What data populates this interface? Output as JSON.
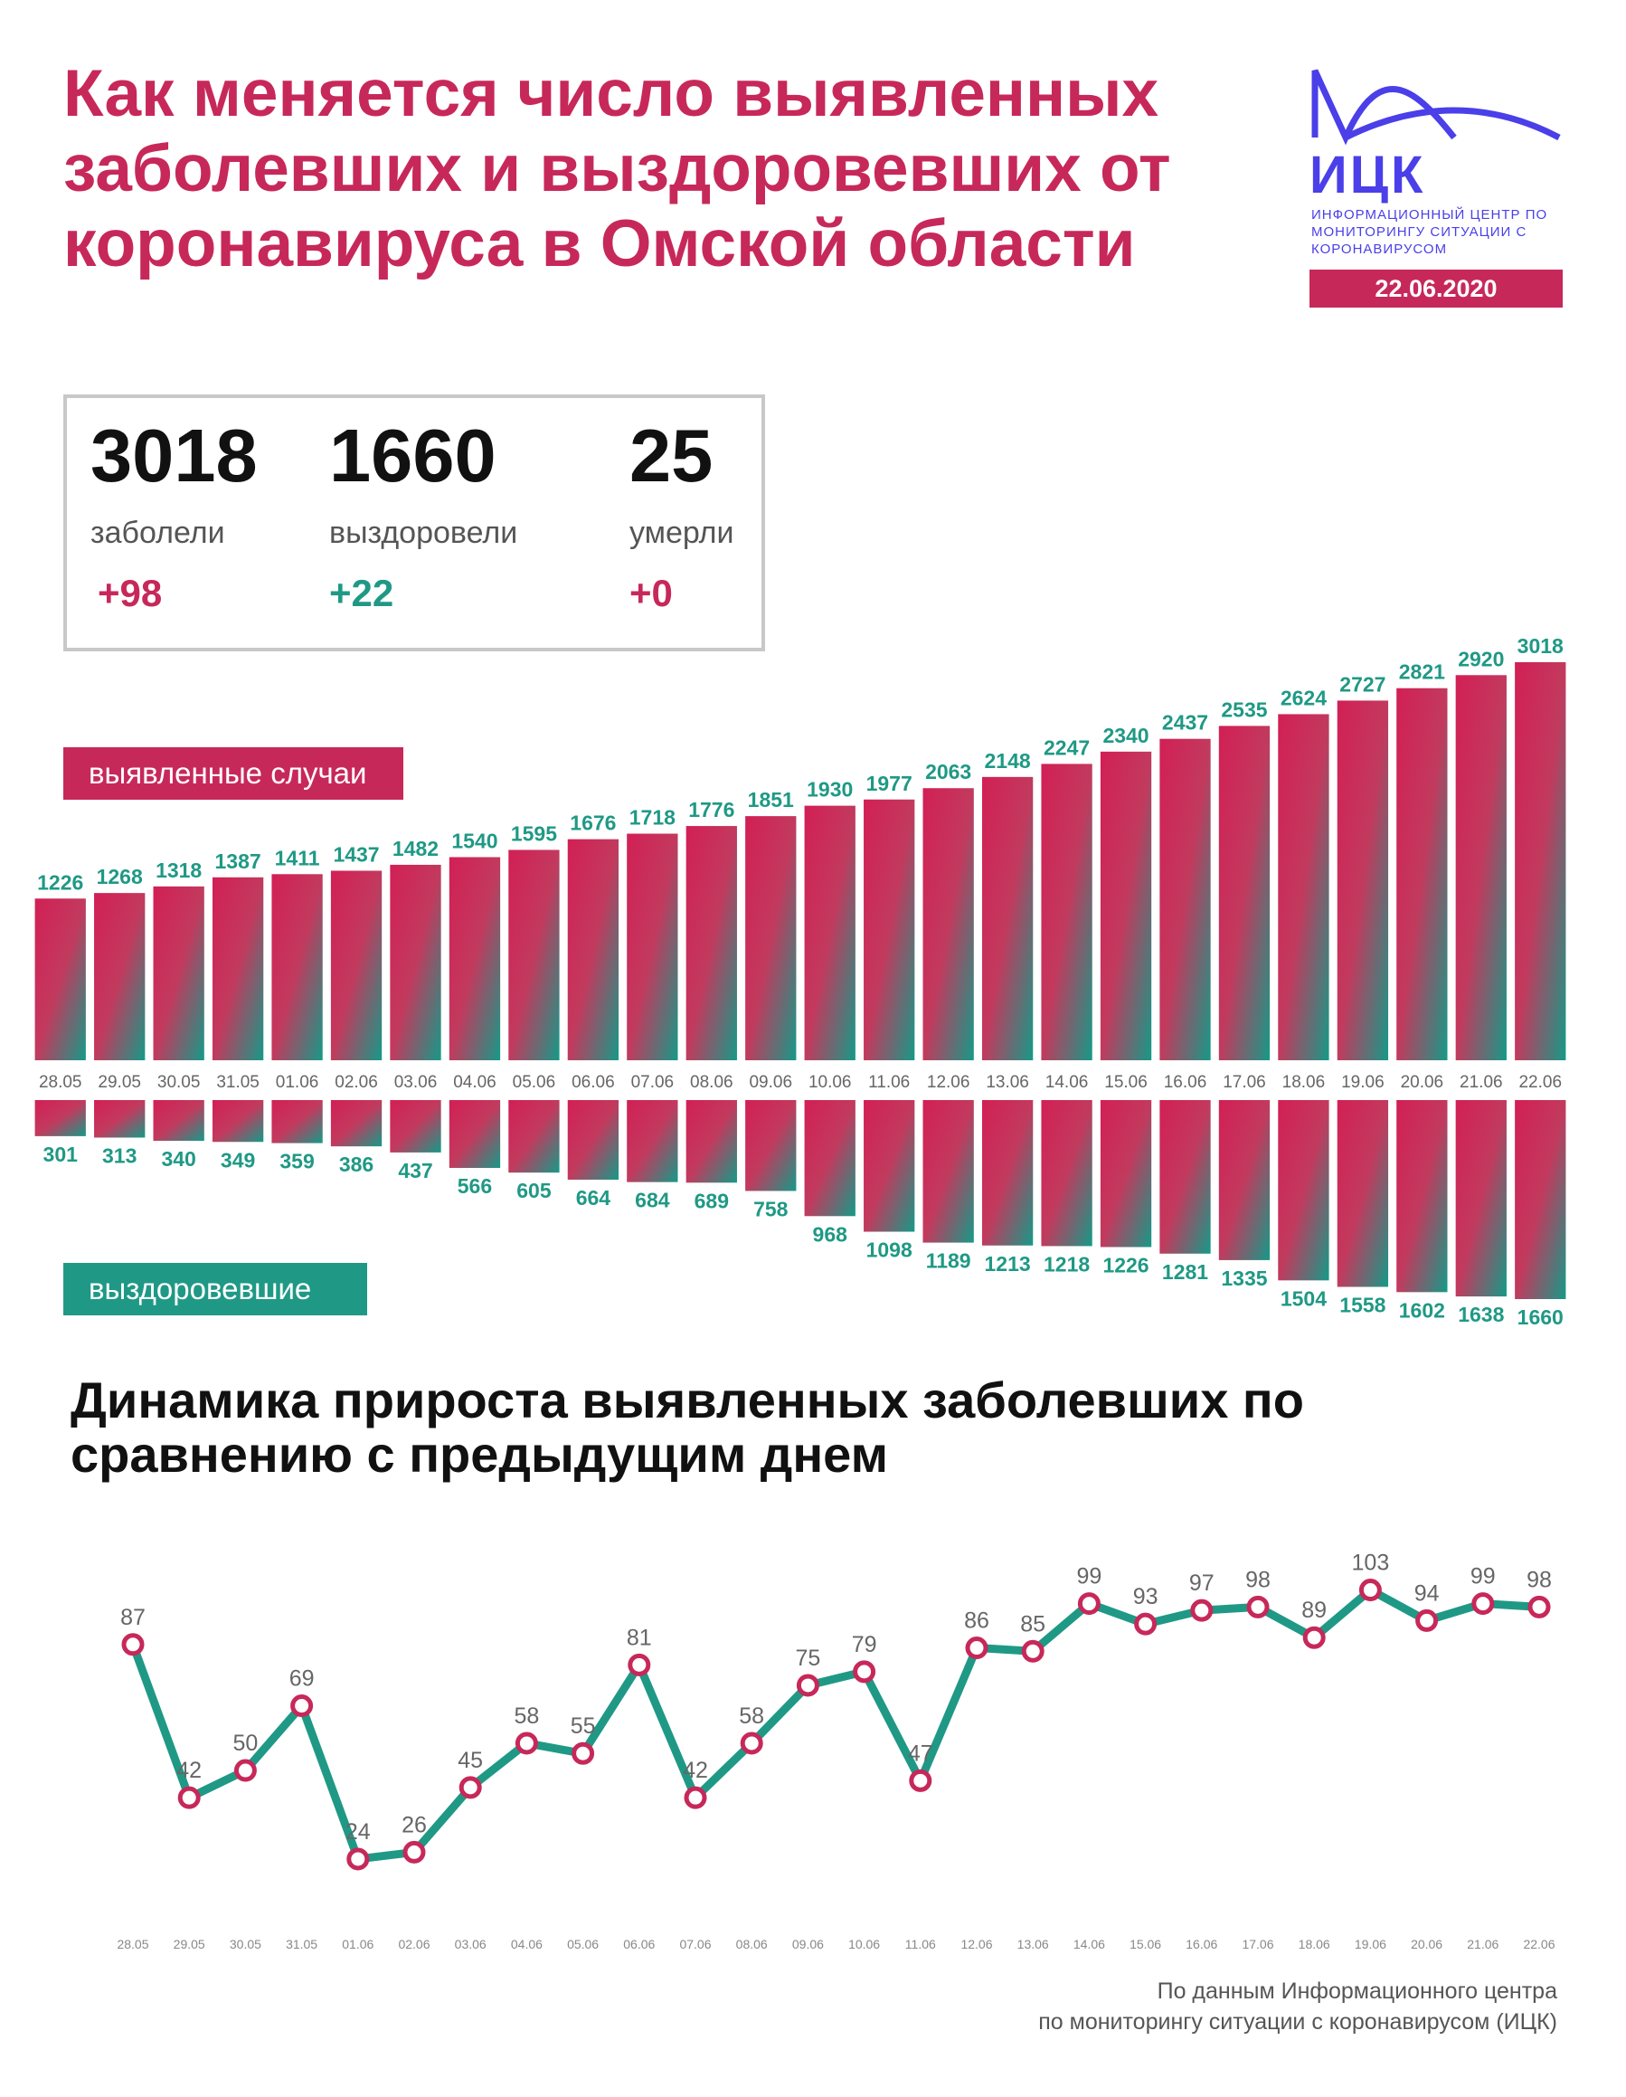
{
  "header": {
    "title": "Как меняется число выявленных заболевших и выздоровевших от коронавируса в Омской области"
  },
  "logo": {
    "name": "ИЦК",
    "description": "ИНФОРМАЦИОННЫЙ ЦЕНТР ПО МОНИТОРИНГУ СИТУАЦИИ С КОРОНАВИРУСОМ",
    "date": "22.06.2020"
  },
  "stats": [
    {
      "value": "3018",
      "label": "заболели",
      "delta": "+98",
      "delta_color": "#c7285a"
    },
    {
      "value": "1660",
      "label": "выздоровели",
      "delta": "+22",
      "delta_color": "#1f9985"
    },
    {
      "value": "25",
      "label": "умерли",
      "delta": "+0",
      "delta_color": "#c7285a"
    }
  ],
  "colors": {
    "accent_red": "#c7285a",
    "accent_teal": "#1f9985",
    "logo_blue": "#4a3fe8"
  },
  "chart_data": [
    {
      "type": "bar",
      "title": "",
      "categories": [
        "28.05",
        "29.05",
        "30.05",
        "31.05",
        "01.06",
        "02.06",
        "03.06",
        "04.06",
        "05.06",
        "06.06",
        "07.06",
        "08.06",
        "09.06",
        "10.06",
        "11.06",
        "12.06",
        "13.06",
        "14.06",
        "15.06",
        "16.06",
        "17.06",
        "18.06",
        "19.06",
        "20.06",
        "21.06",
        "22.06"
      ],
      "series": [
        {
          "name": "выявленные случаи",
          "direction": "up",
          "values": [
            1226,
            1268,
            1318,
            1387,
            1411,
            1437,
            1482,
            1540,
            1595,
            1676,
            1718,
            1776,
            1851,
            1930,
            1977,
            2063,
            2148,
            2247,
            2340,
            2437,
            2535,
            2624,
            2727,
            2821,
            2920,
            3018
          ]
        },
        {
          "name": "выздоровевшие",
          "direction": "down",
          "values": [
            301,
            313,
            340,
            349,
            359,
            386,
            437,
            566,
            605,
            664,
            684,
            689,
            758,
            968,
            1098,
            1189,
            1213,
            1218,
            1226,
            1281,
            1335,
            1504,
            1558,
            1602,
            1638,
            1660
          ]
        }
      ],
      "legend_placement": "left",
      "grid": false
    },
    {
      "type": "line",
      "title": "Динамика прироста выявленных заболевших по сравнению с предыдущим днем",
      "x": [
        "28.05",
        "29.05",
        "30.05",
        "31.05",
        "01.06",
        "02.06",
        "03.06",
        "04.06",
        "05.06",
        "06.06",
        "07.06",
        "08.06",
        "09.06",
        "10.06",
        "11.06",
        "12.06",
        "13.06",
        "14.06",
        "15.06",
        "16.06",
        "17.06",
        "18.06",
        "19.06",
        "20.06",
        "21.06",
        "22.06"
      ],
      "values": [
        87,
        42,
        50,
        69,
        24,
        26,
        45,
        58,
        55,
        81,
        42,
        58,
        75,
        79,
        47,
        86,
        85,
        99,
        93,
        97,
        98,
        89,
        103,
        94,
        99,
        98
      ],
      "ylim": [
        20,
        105
      ],
      "grid": false
    }
  ],
  "footer": {
    "line1": "По данным Информационного центра",
    "line2": "по мониторингу ситуации с коронавирусом (ИЦК)"
  }
}
